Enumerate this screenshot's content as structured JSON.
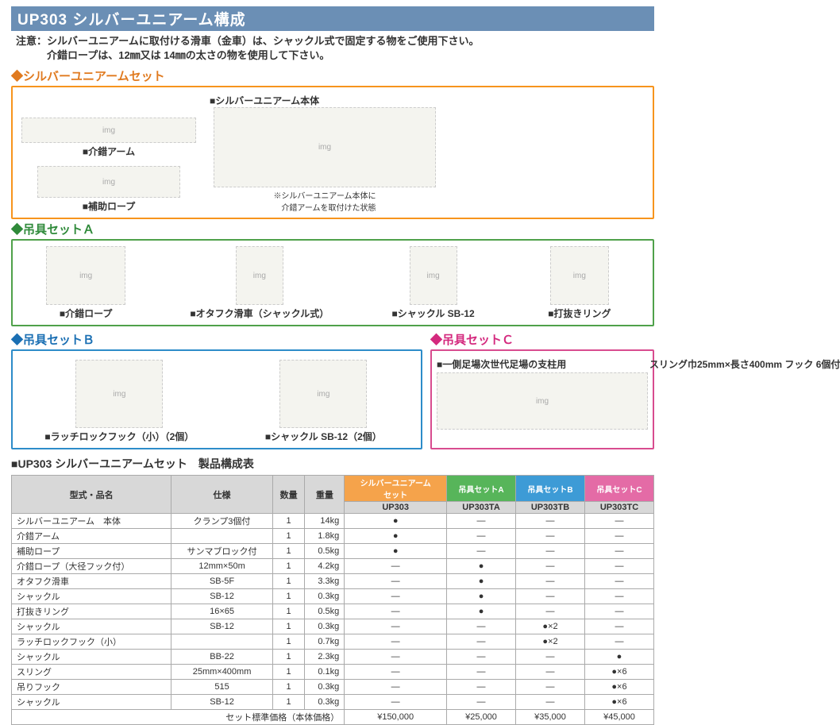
{
  "title": "UP303 シルバーユニアーム構成",
  "note_lines": [
    "注意：シルバーユニアームに取付ける滑車（金車）は、シャックル式で固定する物をご使用下さい。",
    "　　　介錯ロープは、12㎜又は 14㎜の太さの物を使用して下さい。"
  ],
  "sections": {
    "silver_set": {
      "label": "◆シルバーユニアームセット",
      "items": {
        "arm": "■介錯アーム",
        "rope": "■補助ロープ",
        "body": "■シルバーユニアーム本体",
        "body_note": "※シルバーユニアーム本体に\n　介錯アームを取付けた状態"
      }
    },
    "setA": {
      "label": "◆吊具セットＡ",
      "items": {
        "i1": "■介錯ロープ",
        "i2": "■オタフク滑車（シャックル式）",
        "i3": "■シャックル SB-12",
        "i4": "■打抜きリング"
      }
    },
    "setB": {
      "label": "◆吊具セットＢ",
      "items": {
        "i1": "■ラッチロックフック（小）（2個）",
        "i2": "■シャックル SB-12（2個）"
      }
    },
    "setC": {
      "label": "◆吊具セットＣ",
      "top": "■一側足場次世代足場の支柱用",
      "bottom": "スリング巾25mm×長さ400mm フック 6個付"
    }
  },
  "table": {
    "title": "■UP303 シルバーユニアームセット　製品構成表",
    "headers": {
      "model": "型式・品名",
      "spec": "仕様",
      "qty": "数量",
      "wt": "重量",
      "c1": "シルバーユニアーム\nセット",
      "c2": "吊具セットA",
      "c3": "吊具セットB",
      "c4": "吊具セットC",
      "s1": "UP303",
      "s2": "UP303TA",
      "s3": "UP303TB",
      "s4": "UP303TC"
    },
    "rows": [
      {
        "m": "シルバーユニアーム　本体",
        "s": "クランプ3個付",
        "q": "1",
        "w": "14kg",
        "c": [
          "●",
          "—",
          "—",
          "—"
        ]
      },
      {
        "m": "介錯アーム",
        "s": "",
        "q": "1",
        "w": "1.8kg",
        "c": [
          "●",
          "—",
          "—",
          "—"
        ]
      },
      {
        "m": "補助ロープ",
        "s": "サンマブロック付",
        "q": "1",
        "w": "0.5kg",
        "c": [
          "●",
          "—",
          "—",
          "—"
        ]
      },
      {
        "m": "介錯ロープ（大径フック付）",
        "s": "12mm×50m",
        "q": "1",
        "w": "4.2kg",
        "c": [
          "—",
          "●",
          "—",
          "—"
        ]
      },
      {
        "m": "オタフク滑車",
        "s": "SB-5F",
        "q": "1",
        "w": "3.3kg",
        "c": [
          "—",
          "●",
          "—",
          "—"
        ]
      },
      {
        "m": "シャックル",
        "s": "SB-12",
        "q": "1",
        "w": "0.3kg",
        "c": [
          "—",
          "●",
          "—",
          "—"
        ]
      },
      {
        "m": "打抜きリング",
        "s": "16×65",
        "q": "1",
        "w": "0.5kg",
        "c": [
          "—",
          "●",
          "—",
          "—"
        ]
      },
      {
        "m": "シャックル",
        "s": "SB-12",
        "q": "1",
        "w": "0.3kg",
        "c": [
          "—",
          "—",
          "●×2",
          "—"
        ]
      },
      {
        "m": "ラッチロックフック（小）",
        "s": "",
        "q": "1",
        "w": "0.7kg",
        "c": [
          "—",
          "—",
          "●×2",
          "—"
        ]
      },
      {
        "m": "シャックル",
        "s": "BB-22",
        "q": "1",
        "w": "2.3kg",
        "c": [
          "—",
          "—",
          "—",
          "●"
        ]
      },
      {
        "m": "スリング",
        "s": "25mm×400mm",
        "q": "1",
        "w": "0.1kg",
        "c": [
          "—",
          "—",
          "—",
          "●×6"
        ]
      },
      {
        "m": "吊りフック",
        "s": "515",
        "q": "1",
        "w": "0.3kg",
        "c": [
          "—",
          "—",
          "—",
          "●×6"
        ]
      },
      {
        "m": "シャックル",
        "s": "SB-12",
        "q": "1",
        "w": "0.3kg",
        "c": [
          "—",
          "—",
          "—",
          "●×6"
        ]
      }
    ],
    "footer": {
      "label": "セット標準価格（本体価格）",
      "prices": [
        "¥150,000",
        "¥25,000",
        "¥35,000",
        "¥45,000"
      ]
    }
  }
}
